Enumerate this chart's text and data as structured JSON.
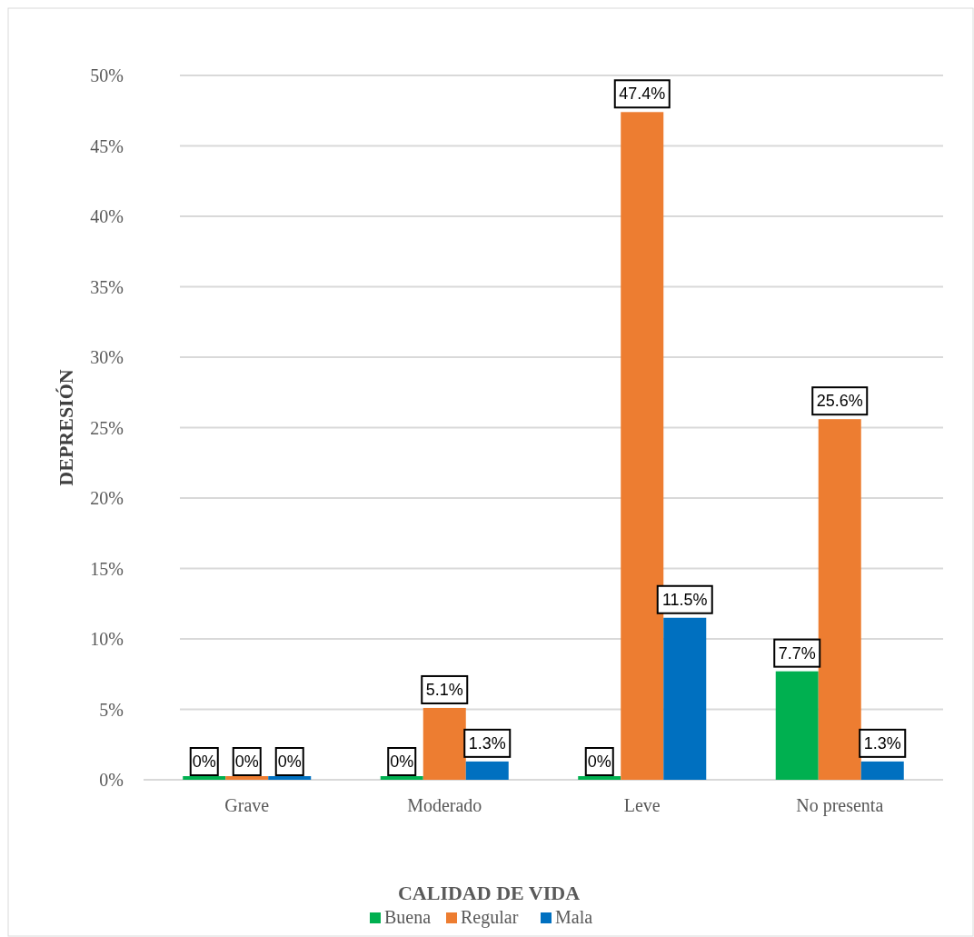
{
  "chart_data": {
    "type": "bar",
    "xlabel": "CALIDAD DE VIDA",
    "ylabel": "DEPRESIÓN",
    "categories": [
      "Grave",
      "Moderado",
      "Leve",
      "No presenta"
    ],
    "series": [
      {
        "name": "Buena",
        "color": "#00b050",
        "values": [
          0,
          0,
          0,
          7.7
        ],
        "value_labels": [
          "0%",
          "0%",
          "0%",
          "7.7%"
        ]
      },
      {
        "name": "Regular",
        "color": "#ed7d31",
        "values": [
          0,
          5.1,
          47.4,
          25.6
        ],
        "value_labels": [
          "0%",
          "5.1%",
          "47.4%",
          "25.6%"
        ]
      },
      {
        "name": "Mala",
        "color": "#0070c0",
        "values": [
          0,
          1.3,
          11.5,
          1.3
        ],
        "value_labels": [
          "0%",
          "1.3%",
          "11.5%",
          "1.3%"
        ]
      }
    ],
    "ylim": [
      0,
      50
    ],
    "yticks": [
      {
        "value": 0,
        "label": "0%"
      },
      {
        "value": 5,
        "label": "5%"
      },
      {
        "value": 10,
        "label": "10%"
      },
      {
        "value": 15,
        "label": "15%"
      },
      {
        "value": 20,
        "label": "20%"
      },
      {
        "value": 25,
        "label": "25%"
      },
      {
        "value": 30,
        "label": "30%"
      },
      {
        "value": 35,
        "label": "35%"
      },
      {
        "value": 40,
        "label": "40%"
      },
      {
        "value": 45,
        "label": "45%"
      },
      {
        "value": 50,
        "label": "50%"
      }
    ],
    "grid": "y",
    "legend": "bottom"
  }
}
